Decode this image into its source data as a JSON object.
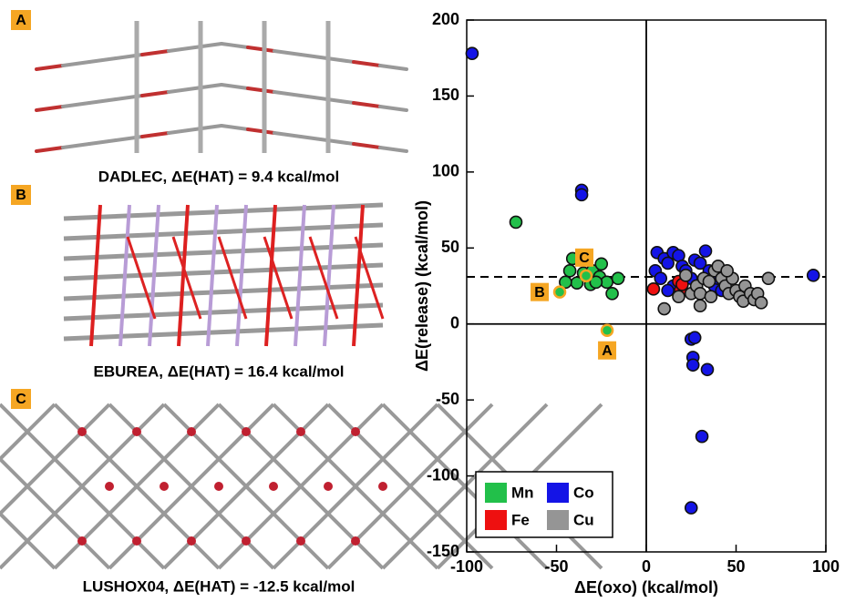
{
  "panels": [
    {
      "letter": "A",
      "caption": "DADLEC, ΔE(HAT) = 9.4 kcal/mol"
    },
    {
      "letter": "B",
      "caption": "EBUREA, ΔE(HAT) = 16.4 kcal/mol"
    },
    {
      "letter": "C",
      "caption": "LUSHOX04, ΔE(HAT) = -12.5 kcal/mol"
    }
  ],
  "chart_data": {
    "type": "scatter",
    "x_label": "ΔE(oxo) (kcal/mol)",
    "y_label": "ΔE(release) (kcal/mol)",
    "xlim": [
      -100,
      100
    ],
    "ylim": [
      -150,
      200
    ],
    "xticks": [
      -100,
      -50,
      0,
      50,
      100
    ],
    "yticks": [
      -150,
      -100,
      -50,
      0,
      50,
      100,
      150,
      200
    ],
    "zero_lines": true,
    "dashed_hline": 31,
    "legend": "lower left",
    "series": [
      {
        "name": "Mn",
        "color": "#22c04a",
        "x": [
          -72.6,
          -41,
          -42.6,
          -38.6,
          -35,
          -30,
          -25,
          -26,
          -22,
          -19,
          -15.7,
          -31,
          -45,
          -28
        ],
        "y": [
          67,
          43,
          35,
          27,
          33.5,
          35,
          39.5,
          31,
          27.5,
          20,
          30,
          26,
          27.5,
          27.5
        ]
      },
      {
        "name": "Co",
        "color": "#1414e6",
        "x": [
          -97,
          -36,
          -36,
          6,
          10,
          5,
          8,
          12,
          15,
          18,
          20,
          22,
          25,
          27,
          30,
          33,
          35,
          38,
          40,
          42,
          28,
          15,
          12,
          25,
          27,
          26,
          26,
          34,
          31,
          25,
          93
        ],
        "y": [
          178,
          88,
          85,
          47,
          43,
          35,
          30,
          40,
          47,
          45,
          38,
          35,
          30,
          42,
          40,
          48,
          35,
          25,
          30,
          22,
          25,
          25,
          22,
          -10,
          -9,
          -22,
          -27,
          -30,
          -74,
          -121,
          32
        ]
      },
      {
        "name": "Fe",
        "color": "#ee1010",
        "x": [
          4,
          18,
          19,
          20
        ],
        "y": [
          23,
          28,
          22,
          26
        ]
      },
      {
        "name": "Cu",
        "color": "#959595",
        "x": [
          10,
          18,
          22,
          25,
          28,
          30,
          32,
          35,
          38,
          40,
          42,
          44,
          46,
          48,
          50,
          52,
          54,
          55,
          58,
          60,
          62,
          64,
          68,
          45,
          36,
          30
        ],
        "y": [
          10,
          18,
          32,
          20,
          25,
          20,
          30,
          28,
          35,
          38,
          30,
          25,
          20,
          30,
          22,
          18,
          15,
          25,
          20,
          16,
          20,
          14,
          30,
          35,
          18,
          12
        ]
      }
    ],
    "annotations": [
      {
        "label": "A",
        "x": -21.8,
        "y": -4.2
      },
      {
        "label": "B",
        "x": -48.2,
        "y": 21
      },
      {
        "label": "C",
        "x": -33.5,
        "y": 31.7
      }
    ]
  }
}
